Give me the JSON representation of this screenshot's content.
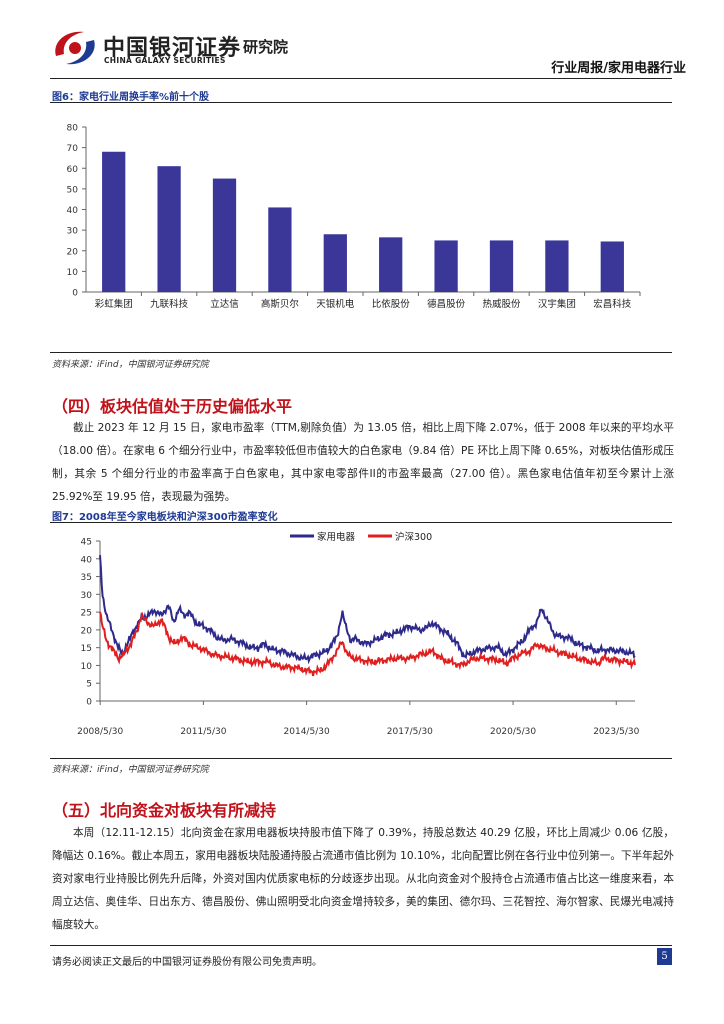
{
  "header": {
    "logo_cn": "中国银河证券",
    "logo_en": "CHINA GALAXY SECURITIES",
    "institute": "研究院",
    "report_type": "行业周报/家用电器行业"
  },
  "figure6": {
    "title": "图6：家电行业周换手率%前十个股",
    "source": "资料来源：iFind，中国银河证券研究院"
  },
  "figure7": {
    "title": "图7：2008年至今家电板块和沪深300市盈率变化",
    "source": "资料来源：iFind，中国银河证券研究院"
  },
  "section4": {
    "title": "（四）板块估值处于历史偏低水平",
    "paragraph": "截止 2023 年 12 月 15 日，家电市盈率（TTM,剔除负值）为 13.05 倍，相比上周下降 2.07%，低于 2008 年以来的平均水平（18.00 倍）。在家电 6 个细分行业中，市盈率较低但市值较大的白色家电（9.84 倍）PE 环比上周下降 0.65%，对板块估值形成压制，其余 5 个细分行业的市盈率高于白色家电，其中家电零部件II的市盈率最高（27.00 倍）。黑色家电估值年初至今累计上涨 25.92%至 19.95 倍，表现最为强势。"
  },
  "section5": {
    "title": "（五）北向资金对板块有所减持",
    "paragraph": "本周（12.11-12.15）北向资金在家用电器板块持股市值下降了 0.39%，持股总数达 40.29 亿股，环比上周减少 0.06 亿股，降幅达 0.16%。截止本周五，家用电器板块陆股通持股占流通市值比例为 10.10%，北向配置比例在各行业中位列第一。下半年起外资对家电行业持股比例先升后降，外资对国内优质家电标的分歧逐步出现。从北向资金对个股持仓占流通市值占比这一维度来看，本周立达信、奥佳华、日出东方、德昌股份、佛山照明受北向资金增持较多，美的集团、德尔玛、三花智控、海尔智家、民爆光电减持幅度较大。"
  },
  "footer": {
    "disclaimer": "请务必阅读正文最后的中国银河证券股份有限公司免责声明。",
    "page": "5"
  },
  "chart_data": [
    {
      "type": "bar",
      "categories": [
        "彩虹集团",
        "九联科技",
        "立达信",
        "高斯贝尔",
        "天银机电",
        "比依股份",
        "德昌股份",
        "热威股份",
        "汉宇集团",
        "宏昌科技"
      ],
      "values": [
        68,
        61,
        55,
        41,
        28,
        26.5,
        25,
        25,
        25,
        24.5
      ],
      "ylim": [
        0,
        80
      ],
      "yticks": [
        0,
        10,
        20,
        30,
        40,
        50,
        60,
        70,
        80
      ],
      "colors": {
        "bar": "#3a3799"
      },
      "grid": false
    },
    {
      "type": "line",
      "series": [
        {
          "name": "家用电器",
          "color": "#2e2a8c"
        },
        {
          "name": "沪深300",
          "color": "#e02020"
        }
      ],
      "xticks": [
        "2008/5/30",
        "2011/5/30",
        "2014/5/30",
        "2017/5/30",
        "2020/5/30",
        "2023/5/30"
      ],
      "yticks": [
        0,
        5,
        10,
        15,
        20,
        25,
        30,
        35,
        40,
        45
      ],
      "ylim": [
        0,
        45
      ],
      "xlim": [
        2008.41,
        2023.96
      ],
      "anchors": {
        "家用电器": [
          [
            2008.41,
            41
          ],
          [
            2008.48,
            30
          ],
          [
            2008.6,
            24
          ],
          [
            2008.75,
            20
          ],
          [
            2008.9,
            16
          ],
          [
            2009.05,
            13
          ],
          [
            2009.2,
            16
          ],
          [
            2009.4,
            20
          ],
          [
            2009.6,
            23
          ],
          [
            2009.8,
            24
          ],
          [
            2010.0,
            25.5
          ],
          [
            2010.2,
            24
          ],
          [
            2010.4,
            27
          ],
          [
            2010.55,
            22
          ],
          [
            2010.7,
            26
          ],
          [
            2010.85,
            24
          ],
          [
            2011.0,
            25
          ],
          [
            2011.2,
            22
          ],
          [
            2011.41,
            21
          ],
          [
            2011.6,
            20
          ],
          [
            2011.8,
            18
          ],
          [
            2012.0,
            17
          ],
          [
            2012.2,
            17.5
          ],
          [
            2012.5,
            16.5
          ],
          [
            2012.8,
            15
          ],
          [
            2013.0,
            15
          ],
          [
            2013.2,
            16
          ],
          [
            2013.4,
            14.5
          ],
          [
            2013.7,
            14
          ],
          [
            2014.0,
            13
          ],
          [
            2014.3,
            12
          ],
          [
            2014.41,
            12
          ],
          [
            2014.7,
            13
          ],
          [
            2015.0,
            14
          ],
          [
            2015.3,
            18
          ],
          [
            2015.45,
            25
          ],
          [
            2015.55,
            21
          ],
          [
            2015.7,
            17
          ],
          [
            2015.85,
            17.5
          ],
          [
            2016.1,
            16
          ],
          [
            2016.4,
            17
          ],
          [
            2016.7,
            18.5
          ],
          [
            2017.0,
            19
          ],
          [
            2017.41,
            21
          ],
          [
            2017.7,
            20
          ],
          [
            2017.9,
            20.5
          ],
          [
            2018.05,
            22
          ],
          [
            2018.2,
            21
          ],
          [
            2018.5,
            19
          ],
          [
            2018.8,
            16
          ],
          [
            2019.0,
            12.5
          ],
          [
            2019.2,
            13.5
          ],
          [
            2019.5,
            14.5
          ],
          [
            2019.8,
            15
          ],
          [
            2020.0,
            15
          ],
          [
            2020.2,
            13
          ],
          [
            2020.41,
            14.5
          ],
          [
            2020.7,
            17
          ],
          [
            2020.9,
            20
          ],
          [
            2021.1,
            22
          ],
          [
            2021.25,
            26
          ],
          [
            2021.4,
            23
          ],
          [
            2021.6,
            19
          ],
          [
            2021.8,
            18
          ],
          [
            2022.0,
            18
          ],
          [
            2022.3,
            16
          ],
          [
            2022.6,
            15
          ],
          [
            2022.9,
            14
          ],
          [
            2023.0,
            14.5
          ],
          [
            2023.41,
            14.2
          ],
          [
            2023.7,
            13.8
          ],
          [
            2023.96,
            13
          ]
        ],
        "沪深300": [
          [
            2008.41,
            25
          ],
          [
            2008.48,
            21
          ],
          [
            2008.6,
            17
          ],
          [
            2008.8,
            14
          ],
          [
            2008.95,
            12
          ],
          [
            2009.1,
            13
          ],
          [
            2009.3,
            16
          ],
          [
            2009.5,
            20
          ],
          [
            2009.6,
            24
          ],
          [
            2009.8,
            22
          ],
          [
            2010.0,
            21
          ],
          [
            2010.2,
            23
          ],
          [
            2010.4,
            18
          ],
          [
            2010.6,
            16
          ],
          [
            2010.8,
            18
          ],
          [
            2011.0,
            16
          ],
          [
            2011.41,
            14.5
          ],
          [
            2011.7,
            13
          ],
          [
            2012.0,
            12.5
          ],
          [
            2012.3,
            12
          ],
          [
            2012.7,
            11
          ],
          [
            2013.0,
            11
          ],
          [
            2013.3,
            11
          ],
          [
            2013.5,
            10
          ],
          [
            2013.8,
            9.5
          ],
          [
            2014.0,
            9.5
          ],
          [
            2014.3,
            9
          ],
          [
            2014.41,
            8.5
          ],
          [
            2014.6,
            8.2
          ],
          [
            2014.8,
            8.5
          ],
          [
            2015.0,
            10
          ],
          [
            2015.3,
            14
          ],
          [
            2015.45,
            17
          ],
          [
            2015.6,
            13
          ],
          [
            2015.8,
            12
          ],
          [
            2016.0,
            11.5
          ],
          [
            2016.3,
            11
          ],
          [
            2016.7,
            11.5
          ],
          [
            2017.0,
            12
          ],
          [
            2017.41,
            12
          ],
          [
            2017.7,
            13
          ],
          [
            2017.9,
            13.5
          ],
          [
            2018.1,
            14
          ],
          [
            2018.3,
            12
          ],
          [
            2018.6,
            11
          ],
          [
            2018.9,
            10
          ],
          [
            2019.0,
            10.5
          ],
          [
            2019.3,
            12
          ],
          [
            2019.6,
            12
          ],
          [
            2020.0,
            11.5
          ],
          [
            2020.2,
            10.5
          ],
          [
            2020.41,
            12
          ],
          [
            2020.7,
            13.5
          ],
          [
            2020.9,
            14
          ],
          [
            2021.1,
            16
          ],
          [
            2021.3,
            15
          ],
          [
            2021.5,
            14.5
          ],
          [
            2021.8,
            13.5
          ],
          [
            2022.0,
            13
          ],
          [
            2022.3,
            12
          ],
          [
            2022.7,
            11
          ],
          [
            2022.9,
            10.5
          ],
          [
            2023.0,
            12
          ],
          [
            2023.41,
            11.5
          ],
          [
            2023.7,
            11
          ],
          [
            2023.96,
            10.5
          ]
        ]
      },
      "grid": false,
      "legend": "top-center"
    }
  ]
}
